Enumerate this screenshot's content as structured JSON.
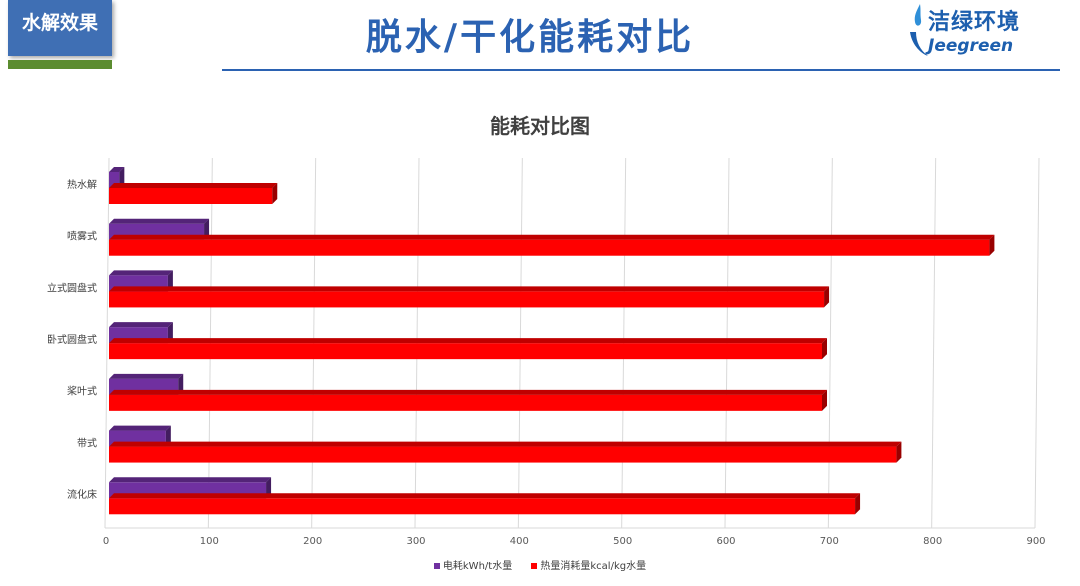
{
  "header": {
    "tag": "水解效果",
    "title": "脱水/干化能耗对比",
    "logo_cn": "洁绿环境",
    "logo_en": "Jeegreen"
  },
  "chart_data": {
    "type": "bar",
    "orientation": "horizontal",
    "title": "能耗对比图",
    "categories": [
      "热水解",
      "喷雾式",
      "立式圆盘式",
      "卧式圆盘式",
      "桨叶式",
      "带式",
      "流化床"
    ],
    "series": [
      {
        "name": "电耗kWh/t水量",
        "color": "#7030a0",
        "values": [
          10,
          92,
          57,
          57,
          67,
          55,
          152
        ]
      },
      {
        "name": "热量消耗量kcal/kg水量",
        "color": "#ff0000",
        "values": [
          158,
          852,
          692,
          690,
          690,
          762,
          722
        ]
      }
    ],
    "xlim": [
      0,
      900
    ],
    "xticks": [
      0,
      100,
      200,
      300,
      400,
      500,
      600,
      700,
      800,
      900
    ],
    "grid": true,
    "legend": "bottom"
  }
}
